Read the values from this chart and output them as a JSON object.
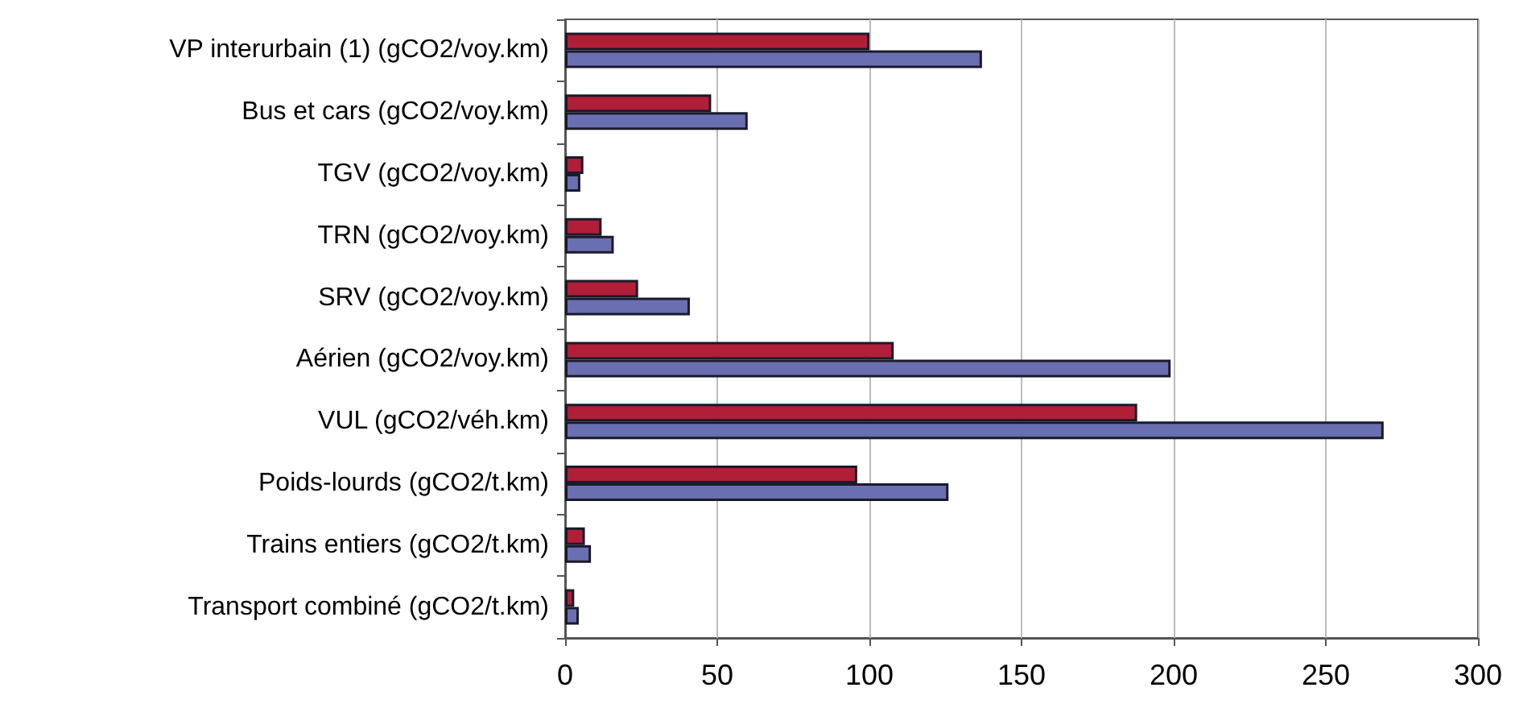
{
  "chart_data": {
    "type": "bar",
    "orientation": "horizontal",
    "categories": [
      "VP interurbain (1) (gCO2/voy.km)",
      "Bus et cars (gCO2/voy.km)",
      "TGV (gCO2/voy.km)",
      "TRN (gCO2/voy.km)",
      "SRV (gCO2/voy.km)",
      "Aérien (gCO2/voy.km)",
      "VUL (gCO2/véh.km)",
      "Poids-lourds (gCO2/t.km)",
      "Trains entiers (gCO2/t.km)",
      "Transport combiné (gCO2/t.km)"
    ],
    "series": [
      {
        "color": "#b01e38",
        "values": [
          100,
          48,
          6,
          12,
          24,
          108,
          188,
          96,
          6.5,
          3
        ]
      },
      {
        "color": "#6a6fb2",
        "values": [
          137,
          60,
          5,
          16,
          41,
          199,
          269,
          126,
          8.5,
          4.5
        ]
      }
    ],
    "xlim": [
      0,
      300
    ],
    "xticks": [
      0,
      50,
      100,
      150,
      200,
      250,
      300
    ],
    "grid": "x"
  }
}
